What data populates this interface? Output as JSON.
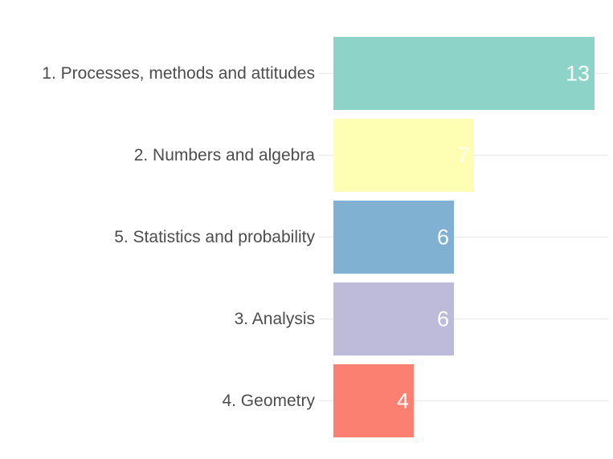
{
  "chart_data": {
    "type": "bar",
    "orientation": "horizontal",
    "title": "",
    "xlabel": "",
    "ylabel": "",
    "categories": [
      "1. Processes, methods and attitudes",
      "2. Numbers and algebra",
      "5. Statistics and probability",
      "3. Analysis",
      "4. Geometry"
    ],
    "values": [
      13,
      7,
      6,
      6,
      4
    ],
    "colors": [
      "#8dd3c7",
      "#ffffb3",
      "#80b1d3",
      "#bebada",
      "#fb8072"
    ],
    "xlim": [
      0,
      13
    ],
    "grid": "horizontal-major",
    "legend": "none",
    "value_labels": "inside-end"
  }
}
